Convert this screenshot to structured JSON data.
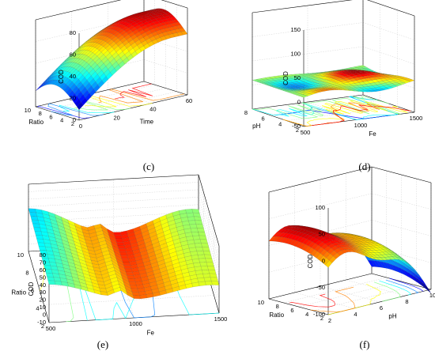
{
  "chart_data": [
    {
      "type": "surface",
      "panel_label": "(c)",
      "zlabel": "COD",
      "xlabel": "Time",
      "ylabel": "Ratio",
      "z_ticks": [
        "0",
        "20",
        "40",
        "60",
        "80"
      ],
      "x_ticks": [
        "0",
        "20",
        "40",
        "60"
      ],
      "y_ticks": [
        "2",
        "4",
        "6",
        "8",
        "10"
      ],
      "zlim": [
        0,
        80
      ],
      "xlim": [
        0,
        60
      ],
      "ylim": [
        2,
        10
      ],
      "grid": true,
      "colormap": "jet"
    },
    {
      "type": "surface",
      "panel_label": "(d)",
      "zlabel": "COD",
      "xlabel": "Fe",
      "ylabel": "pH",
      "z_ticks": [
        "-50",
        "0",
        "50",
        "100",
        "150"
      ],
      "x_ticks": [
        "500",
        "1000",
        "1500"
      ],
      "y_ticks": [
        "2",
        "4",
        "6",
        "8"
      ],
      "zlim": [
        -50,
        150
      ],
      "xlim": [
        500,
        1500
      ],
      "ylim": [
        2,
        9
      ],
      "grid": true,
      "colormap": "jet"
    },
    {
      "type": "surface",
      "panel_label": "(e)",
      "zlabel": "COD",
      "xlabel": "Fe",
      "ylabel": "Ratio",
      "z_ticks": [
        "-10",
        "0",
        "10",
        "20",
        "30",
        "40",
        "50",
        "60",
        "70",
        "80"
      ],
      "x_ticks": [
        "500",
        "1000",
        "1500"
      ],
      "y_ticks": [
        "2",
        "4",
        "6",
        "8",
        "10"
      ],
      "zlim": [
        -10,
        80
      ],
      "xlim": [
        500,
        1500
      ],
      "ylim": [
        2,
        10
      ],
      "grid": true,
      "colormap": "jet"
    },
    {
      "type": "surface",
      "panel_label": "(f)",
      "zlabel": "COD",
      "xlabel": "pH",
      "ylabel": "Ratio",
      "z_ticks": [
        "-100",
        "-50",
        "0",
        "50",
        "100"
      ],
      "x_ticks": [
        "2",
        "4",
        "6",
        "8",
        "10"
      ],
      "y_ticks": [
        "2",
        "4",
        "6",
        "8",
        "10"
      ],
      "zlim": [
        -100,
        100
      ],
      "xlim": [
        2,
        10
      ],
      "ylim": [
        2,
        10
      ],
      "grid": true,
      "colormap": "jet"
    }
  ]
}
